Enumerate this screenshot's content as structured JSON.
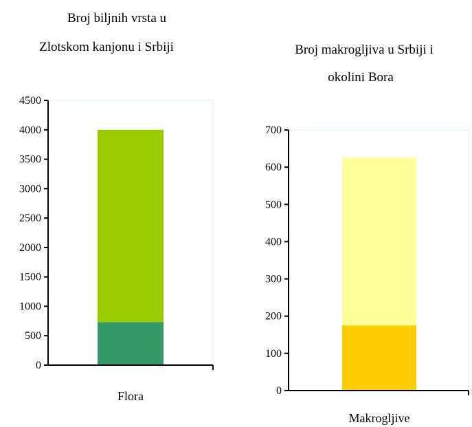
{
  "chart_data": [
    {
      "type": "bar",
      "stacked": true,
      "title_lines": [
        "Broj biljnih vrsta u",
        "Zlotskom kanjonu i Srbiji"
      ],
      "categories": [
        "Flora"
      ],
      "series": [
        {
          "values": [
            730
          ],
          "color": "#339966"
        },
        {
          "values": [
            3270
          ],
          "color": "#99cc00"
        }
      ],
      "ylim": [
        0,
        4500
      ],
      "ticks": [
        0,
        500,
        1000,
        1500,
        2000,
        2500,
        3000,
        3500,
        4000,
        4500
      ],
      "grid": false
    },
    {
      "type": "bar",
      "stacked": true,
      "title_lines": [
        "Broj makrogljiva u Srbiji i",
        "okolini Bora"
      ],
      "categories": [
        "Makrogljive"
      ],
      "series": [
        {
          "values": [
            175
          ],
          "color": "#ffcc00"
        },
        {
          "values": [
            450
          ],
          "color": "#ffff99"
        }
      ],
      "ylim": [
        0,
        700
      ],
      "ticks": [
        0,
        100,
        200,
        300,
        400,
        500,
        600,
        700
      ],
      "grid": false
    }
  ]
}
